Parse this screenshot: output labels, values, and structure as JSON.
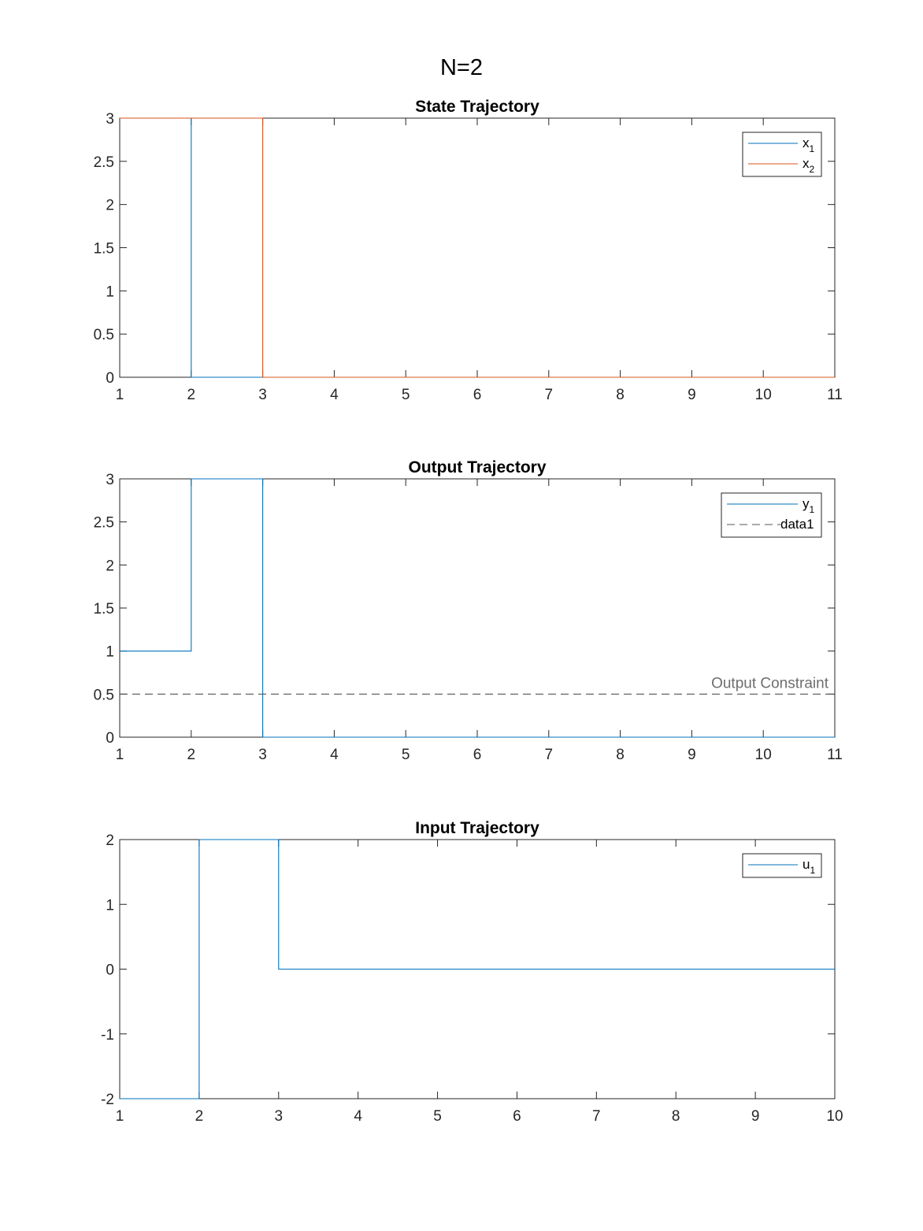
{
  "figure": {
    "suptitle": "N=2"
  },
  "colors": {
    "series_blue": "#0072BD",
    "series_orange": "#D95319",
    "constraint": "#545454",
    "axis": "#262626"
  },
  "chart_data": [
    {
      "type": "line",
      "title": "State Trajectory",
      "xlim": [
        1,
        11
      ],
      "ylim": [
        0,
        3
      ],
      "xticks": [
        1,
        2,
        3,
        4,
        5,
        6,
        7,
        8,
        9,
        10,
        11
      ],
      "yticks": [
        0,
        0.5,
        1,
        1.5,
        2,
        2.5,
        3
      ],
      "ytick_labels": [
        "0",
        "0.5",
        "1",
        "1.5",
        "2",
        "2.5",
        "3"
      ],
      "grid": false,
      "legend": "top-right",
      "series": [
        {
          "name": "x",
          "sub": "1",
          "color": "#0072BD",
          "style": "solid",
          "x": [
            1,
            2,
            2,
            3,
            4,
            5,
            6,
            7,
            8,
            9,
            10,
            11
          ],
          "y": [
            3,
            3,
            0,
            0,
            0,
            0,
            0,
            0,
            0,
            0,
            0,
            0
          ]
        },
        {
          "name": "x",
          "sub": "2",
          "color": "#D95319",
          "style": "solid",
          "x": [
            1,
            2,
            3,
            3,
            4,
            5,
            6,
            7,
            8,
            9,
            10,
            11
          ],
          "y": [
            3,
            3,
            3,
            0,
            0,
            0,
            0,
            0,
            0,
            0,
            0,
            0
          ]
        }
      ]
    },
    {
      "type": "line",
      "title": "Output Trajectory",
      "xlim": [
        1,
        11
      ],
      "ylim": [
        0,
        3
      ],
      "xticks": [
        1,
        2,
        3,
        4,
        5,
        6,
        7,
        8,
        9,
        10,
        11
      ],
      "yticks": [
        0,
        0.5,
        1,
        1.5,
        2,
        2.5,
        3
      ],
      "ytick_labels": [
        "0",
        "0.5",
        "1",
        "1.5",
        "2",
        "2.5",
        "3"
      ],
      "grid": false,
      "legend": "top-right",
      "series": [
        {
          "name": "y",
          "sub": "1",
          "color": "#0072BD",
          "style": "solid",
          "x": [
            1,
            2,
            2,
            3,
            3,
            4,
            5,
            6,
            7,
            8,
            9,
            10,
            11
          ],
          "y": [
            1,
            1,
            3,
            3,
            0,
            0,
            0,
            0,
            0,
            0,
            0,
            0,
            0
          ]
        },
        {
          "name": "data1",
          "sub": "",
          "color": "#545454",
          "style": "dashed",
          "x": [
            1,
            11
          ],
          "y": [
            0.5,
            0.5
          ]
        }
      ],
      "annotations": [
        {
          "text": "Output Constraint",
          "x": 11,
          "y": 0.5,
          "anchor": "end"
        }
      ]
    },
    {
      "type": "line",
      "title": "Input Trajectory",
      "xlim": [
        1,
        10
      ],
      "ylim": [
        -2,
        2
      ],
      "xticks": [
        1,
        2,
        3,
        4,
        5,
        6,
        7,
        8,
        9,
        10
      ],
      "yticks": [
        -2,
        -1,
        0,
        1,
        2
      ],
      "ytick_labels": [
        "-2",
        "-1",
        "0",
        "1",
        "2"
      ],
      "grid": false,
      "legend": "top-right",
      "series": [
        {
          "name": "u",
          "sub": "1",
          "color": "#0072BD",
          "style": "solid",
          "x": [
            1,
            2,
            2,
            3,
            3,
            4,
            5,
            6,
            7,
            8,
            9,
            10
          ],
          "y": [
            -2,
            -2,
            2,
            2,
            0,
            0,
            0,
            0,
            0,
            0,
            0,
            0
          ]
        }
      ]
    }
  ]
}
